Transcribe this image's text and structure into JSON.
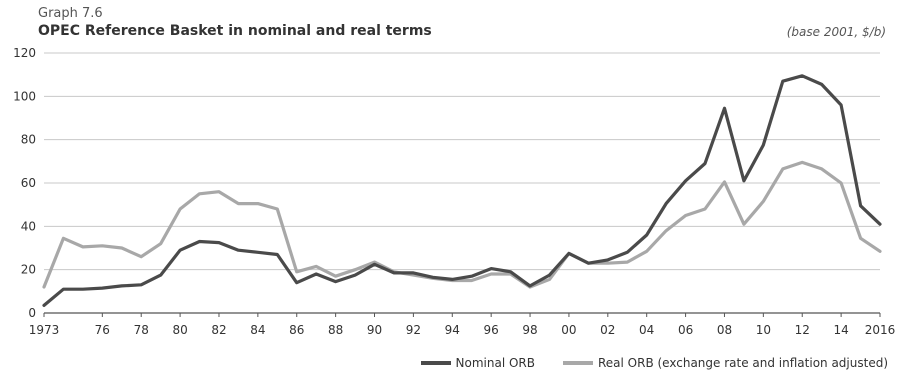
{
  "header": {
    "graph_label": "Graph 7.6",
    "title": "OPEC Reference Basket in nominal and real terms",
    "unit": "(base 2001, $/b)"
  },
  "colors": {
    "nominal": "#4a4a4a",
    "real": "#a8a8a8",
    "grid": "#c8c8c8"
  },
  "chart_data": {
    "type": "line",
    "title": "OPEC Reference Basket in nominal and real terms",
    "xlabel": "",
    "ylabel": "",
    "ylim": [
      0,
      120
    ],
    "yticks": [
      0,
      20,
      40,
      60,
      80,
      100,
      120
    ],
    "xlim": [
      1973,
      2016
    ],
    "xticks": [
      {
        "year": 1973,
        "label": "1973"
      },
      {
        "year": 1976,
        "label": "76"
      },
      {
        "year": 1978,
        "label": "78"
      },
      {
        "year": 1980,
        "label": "80"
      },
      {
        "year": 1982,
        "label": "82"
      },
      {
        "year": 1984,
        "label": "84"
      },
      {
        "year": 1986,
        "label": "86"
      },
      {
        "year": 1988,
        "label": "88"
      },
      {
        "year": 1990,
        "label": "90"
      },
      {
        "year": 1992,
        "label": "92"
      },
      {
        "year": 1994,
        "label": "94"
      },
      {
        "year": 1996,
        "label": "96"
      },
      {
        "year": 1998,
        "label": "98"
      },
      {
        "year": 2000,
        "label": "00"
      },
      {
        "year": 2002,
        "label": "02"
      },
      {
        "year": 2004,
        "label": "04"
      },
      {
        "year": 2006,
        "label": "06"
      },
      {
        "year": 2008,
        "label": "08"
      },
      {
        "year": 2010,
        "label": "10"
      },
      {
        "year": 2012,
        "label": "12"
      },
      {
        "year": 2014,
        "label": "14"
      },
      {
        "year": 2016,
        "label": "2016"
      }
    ],
    "grid": "horizontal",
    "legend_position": "bottom-right",
    "x": [
      1973,
      1974,
      1975,
      1976,
      1977,
      1978,
      1979,
      1980,
      1981,
      1982,
      1983,
      1984,
      1985,
      1986,
      1987,
      1988,
      1989,
      1990,
      1991,
      1992,
      1993,
      1994,
      1995,
      1996,
      1997,
      1998,
      1999,
      2000,
      2001,
      2002,
      2003,
      2004,
      2005,
      2006,
      2007,
      2008,
      2009,
      2010,
      2011,
      2012,
      2013,
      2014,
      2015,
      2016
    ],
    "series": [
      {
        "name": "Nominal ORB",
        "values": [
          3.5,
          11,
          11,
          11.5,
          12.5,
          13,
          17.5,
          29,
          33,
          32.5,
          29,
          28,
          27,
          14,
          18,
          14.5,
          17.5,
          22.5,
          18.5,
          18.5,
          16.5,
          15.5,
          17,
          20.5,
          19,
          12.5,
          17.5,
          27.5,
          23,
          24.5,
          28,
          36,
          50.5,
          61,
          69,
          94.5,
          61,
          77.5,
          107,
          109.5,
          105.5,
          96,
          49.5,
          41
        ]
      },
      {
        "name": "Real ORB (exchange rate and inflation adjusted)",
        "values": [
          12,
          34.5,
          30.5,
          31,
          30,
          26,
          32,
          48,
          55,
          56,
          50.5,
          50.5,
          48,
          19,
          21.5,
          17,
          20,
          23.5,
          19,
          17.5,
          16,
          15,
          15,
          18,
          18,
          12,
          15.5,
          27.5,
          23,
          23,
          23.5,
          28.5,
          38,
          45,
          48,
          60.5,
          41,
          51.5,
          66.5,
          69.5,
          66.5,
          60,
          34.5,
          28.5
        ]
      }
    ]
  }
}
